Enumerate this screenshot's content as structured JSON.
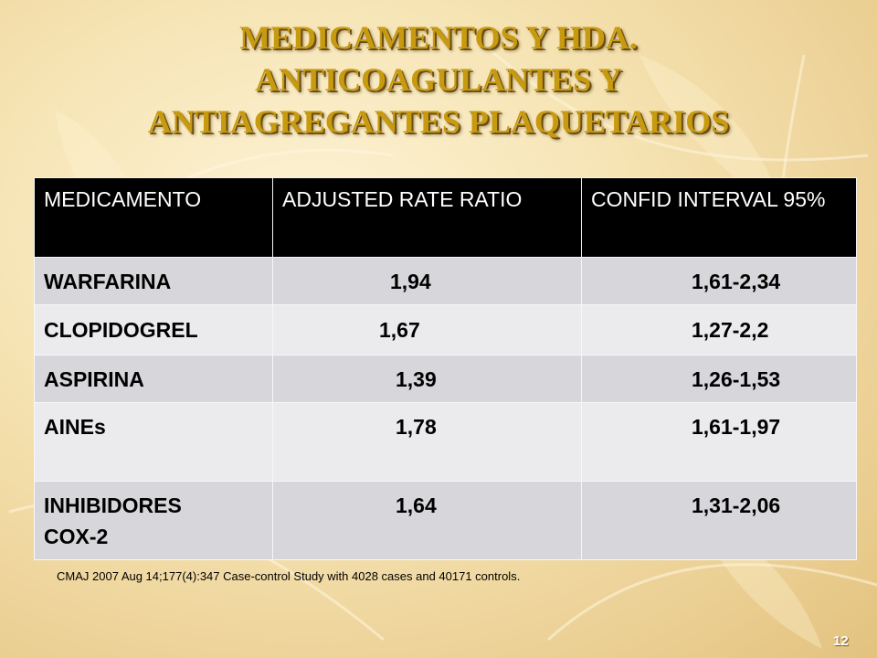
{
  "slide": {
    "title_lines": [
      "MEDICAMENTOS Y HDA.",
      "ANTICOAGULANTES Y",
      "ANTIAGREGANTES PLAQUETARIOS"
    ],
    "table": {
      "headers": [
        "MEDICAMENTO",
        "ADJUSTED RATE RATIO",
        "CONFID INTERVAL 95%"
      ],
      "rows": [
        {
          "medicamento": "WARFARINA",
          "ratio": "1,94",
          "ci": "1,61-2,34"
        },
        {
          "medicamento": "CLOPIDOGREL",
          "ratio": "1,67",
          "ci": "1,27-2,2"
        },
        {
          "medicamento": "ASPIRINA",
          "ratio": "1,39",
          "ci": "1,26-1,53"
        },
        {
          "medicamento": "AINEs",
          "ratio": "1,78",
          "ci": "1,61-1,97"
        },
        {
          "medicamento": "INHIBIDORES COX-2",
          "ratio": "1,64",
          "ci": "1,31-2,06"
        }
      ]
    },
    "footnote": "CMAJ 2007 Aug 14;177(4):347 Case-control Study with 4028 cases and 40171 controls.",
    "page_number": "12"
  },
  "colors": {
    "title": "#c89a10",
    "header_bg": "#000000",
    "row_odd": "#d7d7db",
    "row_even": "#ebebee"
  }
}
